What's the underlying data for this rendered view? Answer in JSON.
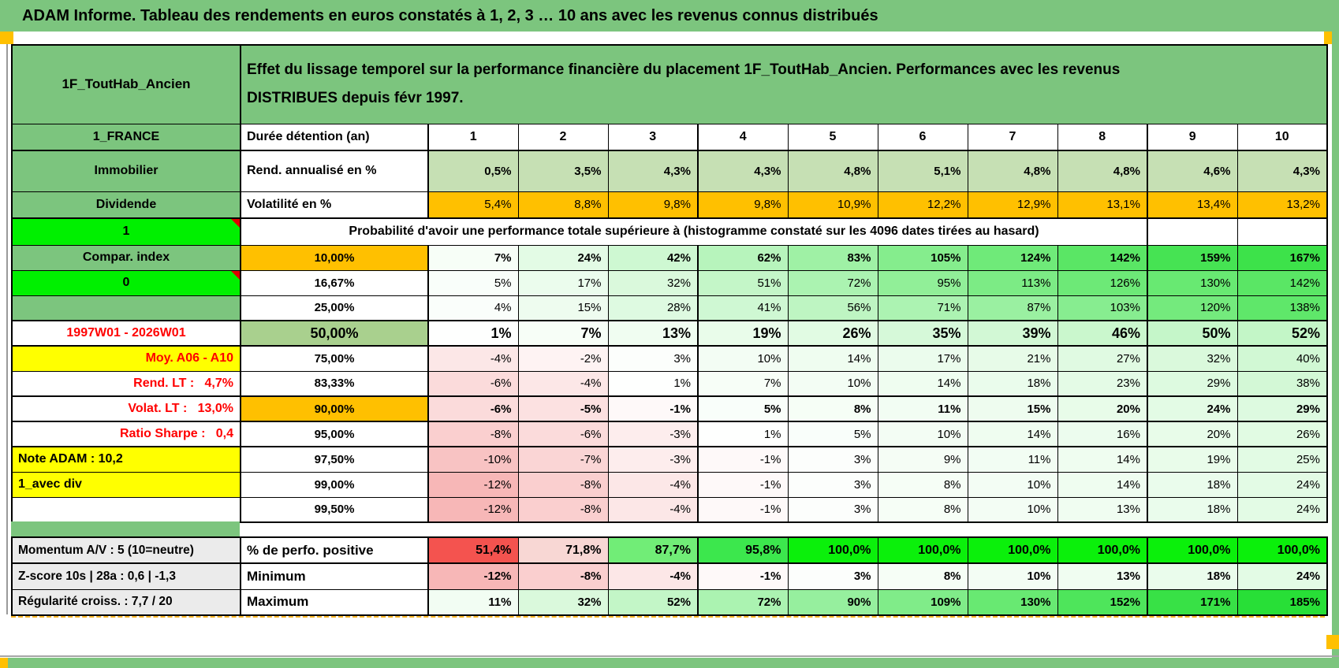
{
  "title_bar": {
    "text": "ADAM Informe. Tableau des rendements en euros constatés à 1, 2, 3 … 10 ans avec les revenus connus distribués"
  },
  "colors": {
    "sheet_green": "#7CC57E",
    "bright_green": "#00F000",
    "yellow": "#FFFF00",
    "orange": "#FFC000",
    "mid_green": "#A9D08E",
    "light_green": "#C6E0B4",
    "label_gray": "#EBEBEB",
    "red_text": "#FF0000",
    "page_break_orange": "#F5A700"
  },
  "header": {
    "placement": "1F_ToutHab_Ancien",
    "description": "Effet du lissage temporel sur la performance financière du placement 1F_ToutHab_Ancien. Performances avec les revenus\nDISTRIBUES depuis févr 1997."
  },
  "main": {
    "rows": [
      {
        "a": "1_FRANCE",
        "a_style": "green",
        "b": "Durée détention (an)",
        "b_style": "label",
        "cells": [
          "1",
          "2",
          "3",
          "4",
          "5",
          "6",
          "7",
          "8",
          "9",
          "10"
        ],
        "mode": "plainbold"
      },
      {
        "a": "Immobilier",
        "a_style": "green",
        "b": "Rend. annualisé en %",
        "b_style": "label",
        "cells": [
          "0,5%",
          "3,5%",
          "4,3%",
          "4,3%",
          "4,8%",
          "5,1%",
          "4,8%",
          "4,8%",
          "4,6%",
          "4,3%"
        ],
        "mode": "fixed",
        "bg": "#C6E0B4",
        "bold": true
      },
      {
        "a": "Dividende",
        "a_style": "green",
        "b": "Volatilité en %",
        "b_style": "label",
        "cells": [
          "5,4%",
          "8,8%",
          "9,8%",
          "9,8%",
          "10,9%",
          "12,2%",
          "12,9%",
          "13,1%",
          "13,4%",
          "13,2%"
        ],
        "mode": "fixed",
        "bg": "#FFC000"
      },
      {
        "a": "1",
        "a_style": "bright",
        "a_note": true,
        "merged": "Probabilité d'avoir une performance totale supérieure à (histogramme constaté sur les 4096 dates tirées au hasard)"
      },
      {
        "a": "Compar. index",
        "a_style": "green",
        "b": "10,00%",
        "b_bg": "#FFC000",
        "cells": [
          "7%",
          "24%",
          "42%",
          "62%",
          "83%",
          "105%",
          "124%",
          "142%",
          "159%",
          "167%"
        ],
        "mode": "grad",
        "bold": true
      },
      {
        "a": "0",
        "a_style": "bright",
        "a_note": true,
        "b": "16,67%",
        "cells": [
          "5%",
          "17%",
          "32%",
          "51%",
          "72%",
          "95%",
          "113%",
          "126%",
          "130%",
          "142%"
        ],
        "mode": "grad"
      },
      {
        "a": "",
        "a_style": "green",
        "b": "25,00%",
        "cells": [
          "4%",
          "15%",
          "28%",
          "41%",
          "56%",
          "71%",
          "87%",
          "103%",
          "120%",
          "138%"
        ],
        "mode": "grad"
      },
      {
        "a": "1997W01 - 2026W01",
        "a_style": "red-center",
        "b": "50,00%",
        "b_bg": "#A9D08E",
        "cells": [
          "1%",
          "7%",
          "13%",
          "19%",
          "26%",
          "35%",
          "39%",
          "46%",
          "50%",
          "52%"
        ],
        "mode": "grad",
        "bold": true,
        "big": true
      },
      {
        "a": "Moy. A06 - A10",
        "a_style": "yellow-red-right",
        "b": "75,00%",
        "cells": [
          "-4%",
          "-2%",
          "3%",
          "10%",
          "14%",
          "17%",
          "21%",
          "27%",
          "32%",
          "40%"
        ],
        "mode": "grad"
      },
      {
        "a": "Rend. LT :   4,7%",
        "a_style": "red-right",
        "b": "83,33%",
        "cells": [
          "-6%",
          "-4%",
          "1%",
          "7%",
          "10%",
          "14%",
          "18%",
          "23%",
          "29%",
          "38%"
        ],
        "mode": "grad"
      },
      {
        "a": "Volat. LT :   13,0%",
        "a_style": "red-right",
        "b": "90,00%",
        "b_bg": "#FFC000",
        "cells": [
          "-6%",
          "-5%",
          "-1%",
          "5%",
          "8%",
          "11%",
          "15%",
          "20%",
          "24%",
          "29%"
        ],
        "mode": "grad",
        "bold": true
      },
      {
        "a": "Ratio Sharpe :   0,4",
        "a_style": "red-right",
        "b": "95,00%",
        "cells": [
          "-8%",
          "-6%",
          "-3%",
          "1%",
          "5%",
          "10%",
          "14%",
          "16%",
          "20%",
          "26%"
        ],
        "mode": "grad"
      },
      {
        "a": "Note ADAM : 10,2",
        "a_style": "yellow-left",
        "b": "97,50%",
        "cells": [
          "-10%",
          "-7%",
          "-3%",
          "-1%",
          "3%",
          "9%",
          "11%",
          "14%",
          "19%",
          "25%"
        ],
        "mode": "grad"
      },
      {
        "a": "1_avec div",
        "a_style": "yellow-left",
        "b": "99,00%",
        "cells": [
          "-12%",
          "-8%",
          "-4%",
          "-1%",
          "3%",
          "8%",
          "10%",
          "14%",
          "18%",
          "24%"
        ],
        "mode": "grad"
      },
      {
        "a": "",
        "a_style": "white",
        "b": "99,50%",
        "cells": [
          "-12%",
          "-8%",
          "-4%",
          "-1%",
          "3%",
          "8%",
          "10%",
          "13%",
          "18%",
          "24%"
        ],
        "mode": "grad"
      }
    ]
  },
  "bottom": {
    "rows": [
      {
        "a": "Momentum A/V : 5 (10=neutre)",
        "b": "% de perfo. positive",
        "cells": [
          "51,4%",
          "71,8%",
          "87,7%",
          "95,8%",
          "100,0%",
          "100,0%",
          "100,0%",
          "100,0%",
          "100,0%",
          "100,0%"
        ],
        "mode": "colors",
        "colors": [
          "#F4534F",
          "#F8D7D4",
          "#71ED77",
          "#3CE74D",
          "#0BF00B",
          "#0BF00B",
          "#0BF00B",
          "#0BF00B",
          "#0BF00B",
          "#0BF00B"
        ],
        "bold": true,
        "big": true
      },
      {
        "a": "Z-score 10s | 28a : 0,6 | -1,3",
        "b": "Minimum",
        "cells": [
          "-12%",
          "-8%",
          "-4%",
          "-1%",
          "3%",
          "8%",
          "10%",
          "13%",
          "18%",
          "24%"
        ],
        "mode": "grad",
        "bold": true
      },
      {
        "a": "Régularité croiss. : 7,7 / 20",
        "b": "Maximum",
        "cells": [
          "11%",
          "32%",
          "52%",
          "72%",
          "90%",
          "109%",
          "130%",
          "152%",
          "171%",
          "185%"
        ],
        "mode": "grad",
        "bold": true
      }
    ]
  }
}
